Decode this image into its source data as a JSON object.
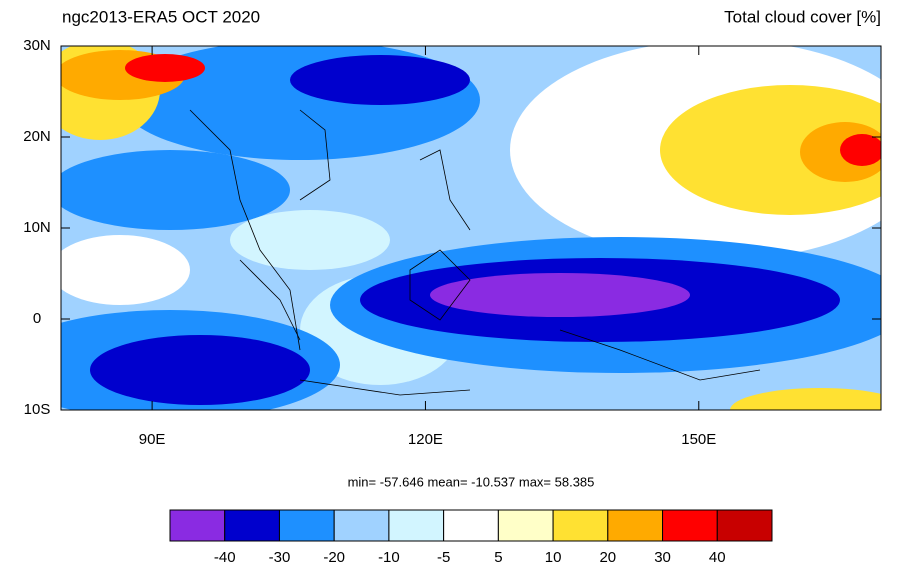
{
  "chart_data": {
    "type": "map",
    "title": "ngc2013-ERA5 OCT 2020",
    "subtitle": "Total cloud cover [%]",
    "xlim": [
      80,
      170
    ],
    "ylim": [
      -10,
      30
    ],
    "xticks": [
      {
        "value": 90,
        "label": "90E"
      },
      {
        "value": 120,
        "label": "120E"
      },
      {
        "value": 150,
        "label": "150E"
      }
    ],
    "yticks": [
      {
        "value": 30,
        "label": "30N"
      },
      {
        "value": 20,
        "label": "20N"
      },
      {
        "value": 10,
        "label": "10N"
      },
      0,
      {
        "value": -10,
        "label": "10S"
      }
    ],
    "stats": "min= -57.646  mean= -10.537  max= 58.385",
    "colorbar": {
      "levels": [
        -40,
        -30,
        -20,
        -10,
        -5,
        5,
        10,
        20,
        30,
        40
      ],
      "colors": [
        "#8a2be2",
        "#0000cd",
        "#1e90ff",
        "#a0d2ff",
        "#d2f5ff",
        "#ffffff",
        "#ffffc8",
        "#ffe132",
        "#ffaa00",
        "#ff0000",
        "#c80000"
      ]
    }
  }
}
